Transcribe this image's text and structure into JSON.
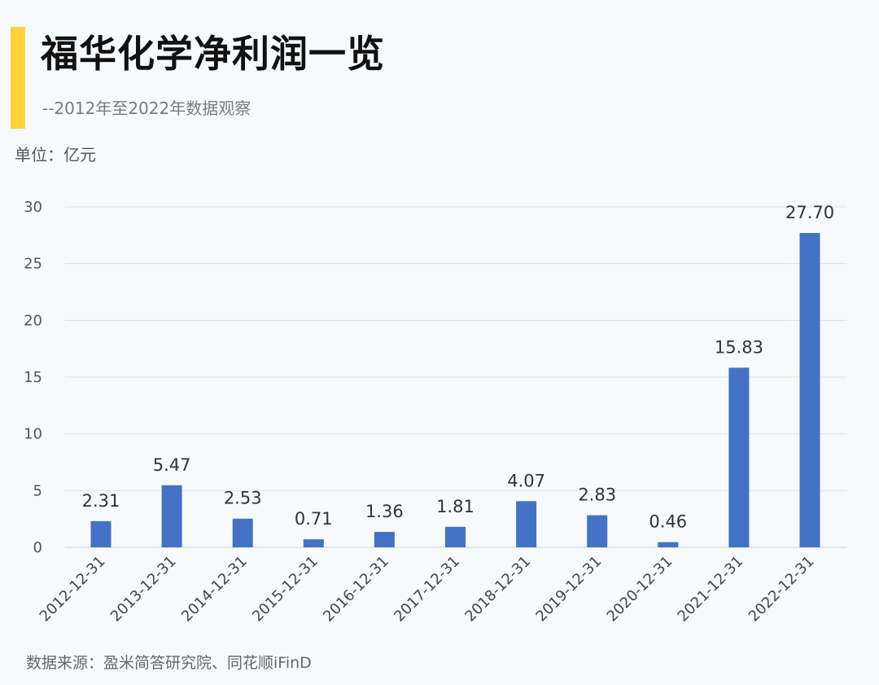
{
  "header": {
    "title": "福华化学净利润一览",
    "subtitle": "--2012年至2022年数据观察",
    "unit": "单位：亿元"
  },
  "footer": {
    "source": "数据来源：盈米简答研究院、同花顺iFinD"
  },
  "colors": {
    "accent": "#fdd23b",
    "bar": "#4472c4",
    "gridline": "#dfe3e8",
    "background": "#f7fafd"
  },
  "chart_data": {
    "type": "bar",
    "title": "福华化学净利润一览",
    "xlabel": "",
    "ylabel": "单位：亿元",
    "ylim": [
      0,
      30
    ],
    "yticks": [
      0,
      5,
      10,
      15,
      20,
      25,
      30
    ],
    "grid": true,
    "categories": [
      "2012-12-31",
      "2013-12-31",
      "2014-12-31",
      "2015-12-31",
      "2016-12-31",
      "2017-12-31",
      "2018-12-31",
      "2019-12-31",
      "2020-12-31",
      "2021-12-31",
      "2022-12-31"
    ],
    "values": [
      2.31,
      5.47,
      2.53,
      0.71,
      1.36,
      1.81,
      4.07,
      2.83,
      0.46,
      15.83,
      27.7
    ],
    "value_labels": [
      "2.31",
      "5.47",
      "2.53",
      "0.71",
      "1.36",
      "1.81",
      "4.07",
      "2.83",
      "0.46",
      "15.83",
      "27.70"
    ]
  }
}
